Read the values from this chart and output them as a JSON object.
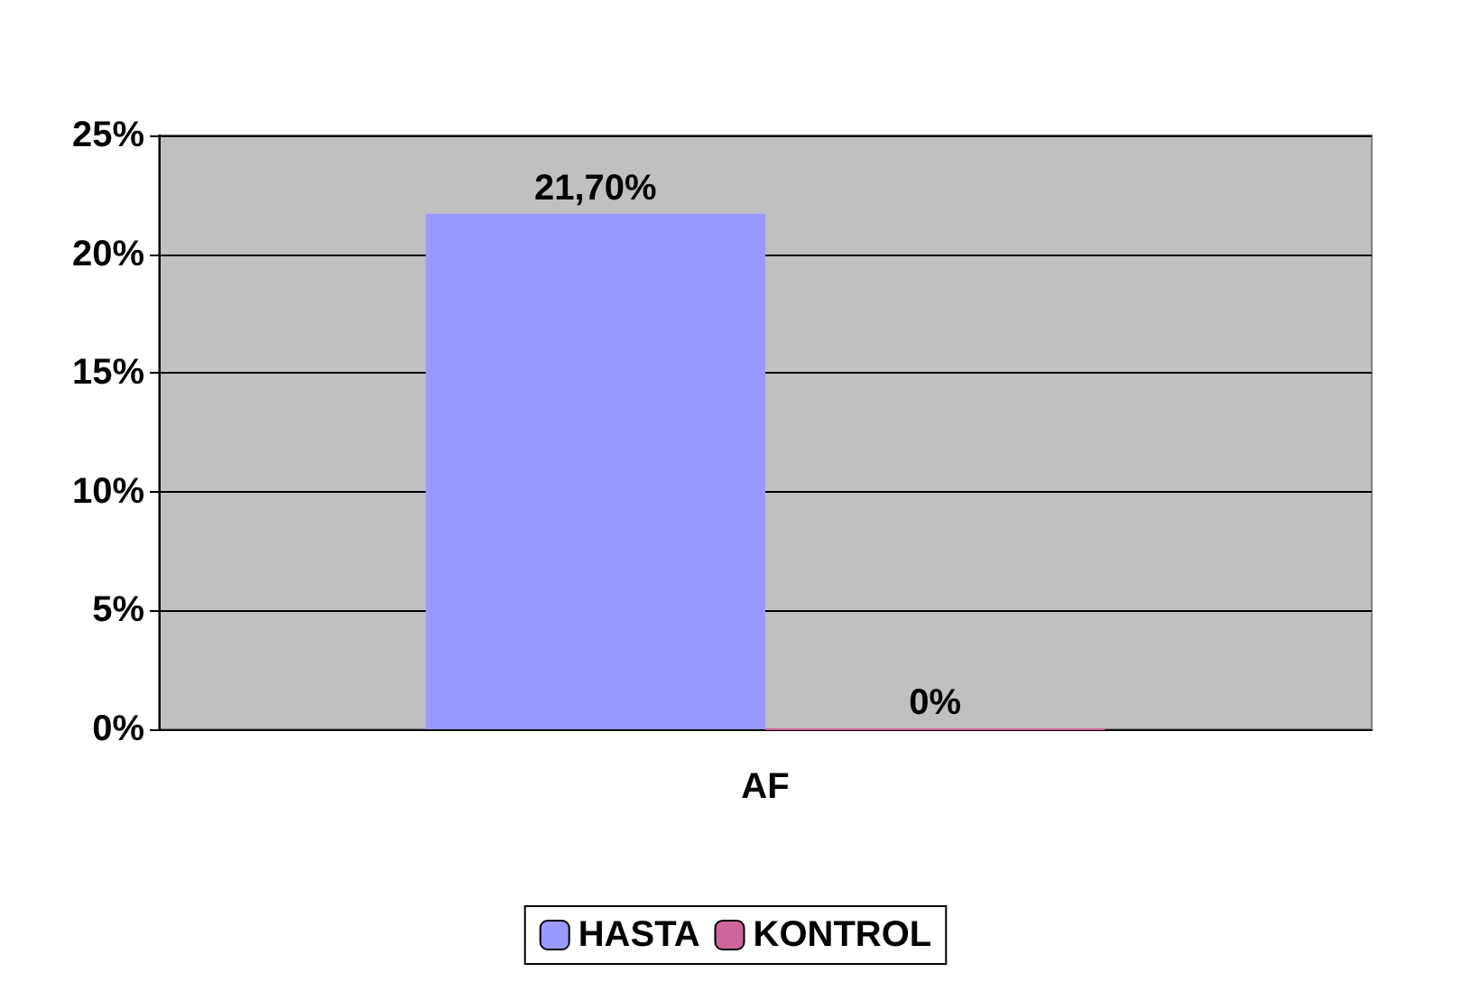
{
  "chart_data": {
    "type": "bar",
    "categories": [
      "AF"
    ],
    "series": [
      {
        "name": "HASTA",
        "color": "#9999ff",
        "values": [
          21.7
        ],
        "value_labels": [
          "21,70%"
        ]
      },
      {
        "name": "KONTROL",
        "color": "#cc6699",
        "values": [
          0
        ],
        "value_labels": [
          "0%"
        ]
      }
    ],
    "ylim": [
      0,
      25
    ],
    "yticks": [
      {
        "value": 0,
        "label": "0%"
      },
      {
        "value": 5,
        "label": "5%"
      },
      {
        "value": 10,
        "label": "10%"
      },
      {
        "value": 15,
        "label": "15%"
      },
      {
        "value": 20,
        "label": "20%"
      },
      {
        "value": 25,
        "label": "25%"
      }
    ],
    "grid": "y",
    "legend": "bottom"
  }
}
